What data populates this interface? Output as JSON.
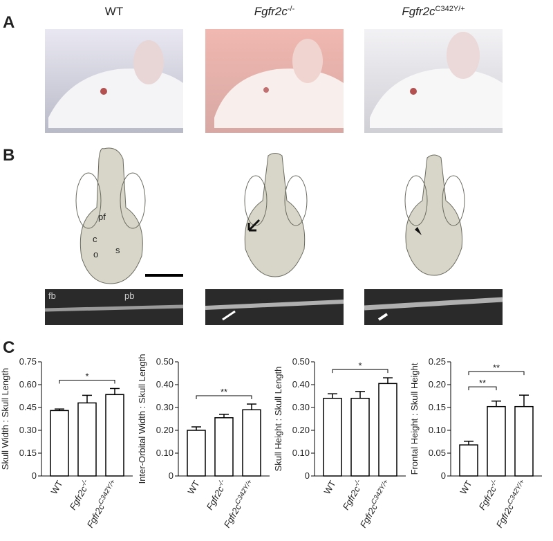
{
  "panels": {
    "A": "A",
    "B": "B",
    "C": "C"
  },
  "columns": [
    {
      "gene": "WT",
      "superscript": null
    },
    {
      "gene": "Fgfr2c",
      "superscript": "-/-"
    },
    {
      "gene": "Fgfr2c",
      "superscript": "C342Y/+"
    }
  ],
  "skull_labels": {
    "pf": "pf",
    "c": "c",
    "o": "o",
    "s": "s"
  },
  "ct_labels": {
    "fb": "fb",
    "pb": "pb"
  },
  "chart_data": [
    {
      "type": "bar",
      "ylabel": "Skull Width : Skull Length",
      "categories": [
        "WT",
        "Fgfr2c",
        "Fgfr2c"
      ],
      "category_superscripts": [
        null,
        "-/-",
        "C342Y/+"
      ],
      "values": [
        0.43,
        0.48,
        0.535
      ],
      "errors": [
        0.01,
        0.05,
        0.04
      ],
      "color": "#ffffff",
      "ylim": [
        0,
        0.75
      ],
      "yticks": [
        0,
        0.15,
        {
          "value": 0.3,
          "label": "0.30"
        },
        0.45,
        {
          "value": 0.6,
          "label": "0.60"
        },
        0.75
      ],
      "significance": [
        {
          "label": "*",
          "between": [
            0,
            2
          ]
        }
      ]
    },
    {
      "type": "bar",
      "ylabel": "Inter-Orbital Width : Skull Length",
      "categories": [
        "WT",
        "Fgfr2c",
        "Fgfr2c"
      ],
      "category_superscripts": [
        null,
        "-/-",
        "C342Y/+"
      ],
      "values": [
        0.2,
        0.255,
        0.29
      ],
      "errors": [
        0.015,
        0.015,
        0.025
      ],
      "color": "#ffffff",
      "ylim": [
        0,
        0.5
      ],
      "yticks": [
        0,
        {
          "value": 0.1,
          "label": "0.10"
        },
        {
          "value": 0.2,
          "label": "0.20"
        },
        {
          "value": 0.3,
          "label": "0.30"
        },
        {
          "value": 0.4,
          "label": "0.40"
        },
        {
          "value": 0.5,
          "label": "0.50"
        }
      ],
      "significance": [
        {
          "label": "**",
          "between": [
            0,
            2
          ]
        }
      ]
    },
    {
      "type": "bar",
      "ylabel": "Skull Height : Skull Length",
      "categories": [
        "WT",
        "Fgfr2c",
        "Fgfr2c"
      ],
      "category_superscripts": [
        null,
        "-/-",
        "C342Y/+"
      ],
      "values": [
        0.34,
        0.34,
        0.405
      ],
      "errors": [
        0.02,
        0.03,
        0.025
      ],
      "color": "#ffffff",
      "ylim": [
        0,
        0.5
      ],
      "yticks": [
        0,
        {
          "value": 0.1,
          "label": "0.10"
        },
        {
          "value": 0.2,
          "label": "0.20"
        },
        {
          "value": 0.3,
          "label": "0.30"
        },
        {
          "value": 0.4,
          "label": "0.40"
        },
        {
          "value": 0.5,
          "label": "0.50"
        }
      ],
      "significance": [
        {
          "label": "*",
          "between": [
            0,
            2
          ]
        }
      ]
    },
    {
      "type": "bar",
      "ylabel": "Frontal Height : Skull Height",
      "categories": [
        "WT",
        "Fgfr2c",
        "Fgfr2c"
      ],
      "category_superscripts": [
        null,
        "-/-",
        "C342Y/+"
      ],
      "values": [
        0.068,
        0.152,
        0.152
      ],
      "errors": [
        0.008,
        0.012,
        0.025
      ],
      "color": "#ffffff",
      "ylim": [
        0,
        0.25
      ],
      "yticks": [
        0,
        0.05,
        {
          "value": 0.1,
          "label": "0.10"
        },
        0.15,
        {
          "value": 0.2,
          "label": "0.20"
        },
        0.25
      ],
      "significance": [
        {
          "label": "**",
          "between": [
            0,
            1
          ]
        },
        {
          "label": "**",
          "between": [
            0,
            2
          ]
        }
      ]
    }
  ]
}
